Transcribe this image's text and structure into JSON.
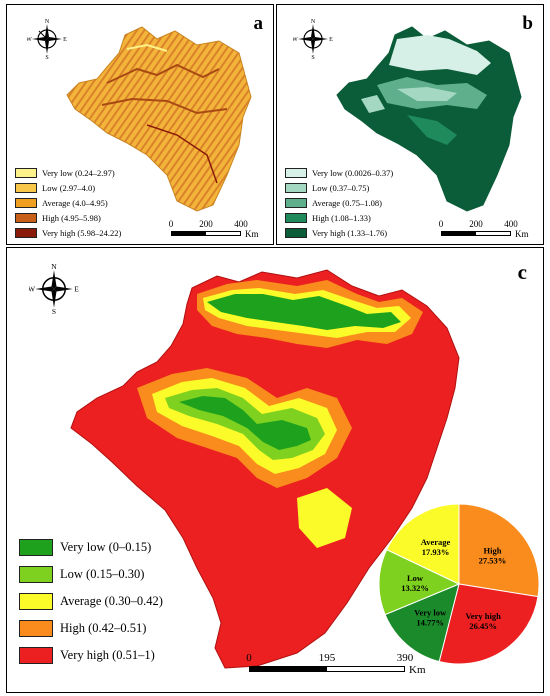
{
  "panels": {
    "a": {
      "label": "a",
      "legend": [
        {
          "label": "Very low (0.24–2.97)",
          "color": "#fdf18a"
        },
        {
          "label": "Low (2.97–4.0)",
          "color": "#f9c84a"
        },
        {
          "label": "Average (4.0–4.95)",
          "color": "#f0a020"
        },
        {
          "label": "High (4.95–5.98)",
          "color": "#c8601a"
        },
        {
          "label": "Very high (5.98–24.22)",
          "color": "#8a1a0a"
        }
      ],
      "scale": {
        "ticks": [
          "0",
          "200",
          "400"
        ],
        "unit": "Km"
      }
    },
    "b": {
      "label": "b",
      "legend": [
        {
          "label": "Very low (0.0026–0.37)",
          "color": "#d6f0e8"
        },
        {
          "label": "Low (0.37–0.75)",
          "color": "#a4d8c2"
        },
        {
          "label": "Average (0.75–1.08)",
          "color": "#5fae8c"
        },
        {
          "label": "High (1.08–1.33)",
          "color": "#1f8a5c"
        },
        {
          "label": "Very high (1.33–1.76)",
          "color": "#0b5c38"
        }
      ],
      "scale": {
        "ticks": [
          "0",
          "200",
          "400"
        ],
        "unit": "Km"
      }
    },
    "c": {
      "label": "c",
      "legend": [
        {
          "label": "Very low (0–0.15)",
          "color": "#1ea21e"
        },
        {
          "label": "Low (0.15–0.30)",
          "color": "#7fd11f"
        },
        {
          "label": "Average (0.30–0.42)",
          "color": "#fbfb2a"
        },
        {
          "label": "High (0.42–0.51)",
          "color": "#f98c1c"
        },
        {
          "label": "Very high (0.51–1)",
          "color": "#ec2020"
        }
      ],
      "scale": {
        "ticks": [
          "0",
          "195",
          "390"
        ],
        "unit": "Km"
      }
    }
  },
  "compass": {
    "n": "N",
    "s": "S",
    "e": "E",
    "w": "W"
  },
  "chart_data": {
    "type": "pie",
    "slices": [
      {
        "name": "High",
        "value": 27.53,
        "label": "27.53%",
        "color": "#f98c1c"
      },
      {
        "name": "Very high",
        "value": 26.45,
        "label": "26.45%",
        "color": "#ec2020"
      },
      {
        "name": "Very low",
        "value": 14.77,
        "label": "14.77%",
        "color": "#1a8a2a"
      },
      {
        "name": "Low",
        "value": 13.32,
        "label": "13.32%",
        "color": "#7fd11f"
      },
      {
        "name": "Average",
        "value": 17.93,
        "label": "17.93%",
        "color": "#fbfb2a"
      }
    ]
  }
}
